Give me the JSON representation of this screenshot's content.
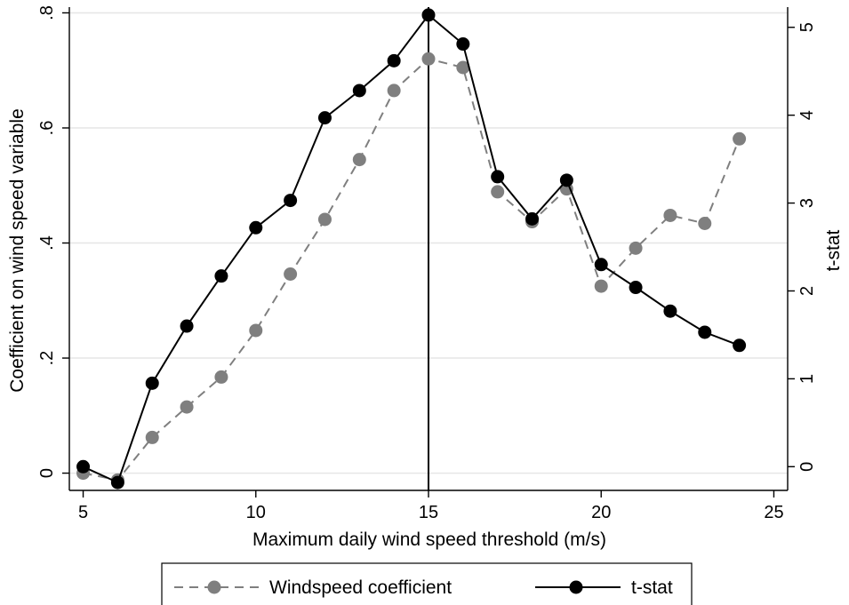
{
  "chart_data": {
    "type": "line",
    "xlabel": "Maximum daily wind speed threshold (m/s)",
    "ylabel_left": "Coefficient on wind speed variable",
    "ylabel_right": "t-stat",
    "x_ticks": [
      "5",
      "10",
      "15",
      "20",
      "25"
    ],
    "y_left_ticks": [
      "0",
      ".2",
      ".4",
      ".6",
      ".8"
    ],
    "y_right_ticks": [
      "0",
      "1",
      "2",
      "3",
      "4",
      "5"
    ],
    "xlim": [
      4.6,
      25.4
    ],
    "ylim_left": [
      -0.03,
      0.81
    ],
    "ylim_right": [
      -0.27,
      5.23
    ],
    "vline_x": 15,
    "grid": true,
    "legend_position": "bottom",
    "x": [
      5,
      6,
      7,
      8,
      9,
      10,
      11,
      12,
      13,
      14,
      15,
      16,
      17,
      18,
      19,
      20,
      21,
      22,
      23,
      24
    ],
    "series": [
      {
        "name": "Windspeed coefficient",
        "axis": "left",
        "color": "#7f7f7f",
        "dash": true,
        "values": [
          0.0,
          -0.012,
          0.062,
          0.115,
          0.167,
          0.248,
          0.346,
          0.441,
          0.545,
          0.665,
          0.72,
          0.705,
          0.489,
          0.437,
          0.494,
          0.325,
          0.391,
          0.448,
          0.434,
          0.581
        ]
      },
      {
        "name": "t-stat",
        "axis": "right",
        "color": "#000000",
        "dash": false,
        "values": [
          0.0,
          -0.18,
          0.95,
          1.6,
          2.17,
          2.72,
          3.03,
          3.97,
          4.28,
          4.62,
          5.14,
          4.81,
          3.3,
          2.82,
          3.26,
          2.3,
          2.04,
          1.77,
          1.53,
          1.38
        ]
      }
    ]
  }
}
